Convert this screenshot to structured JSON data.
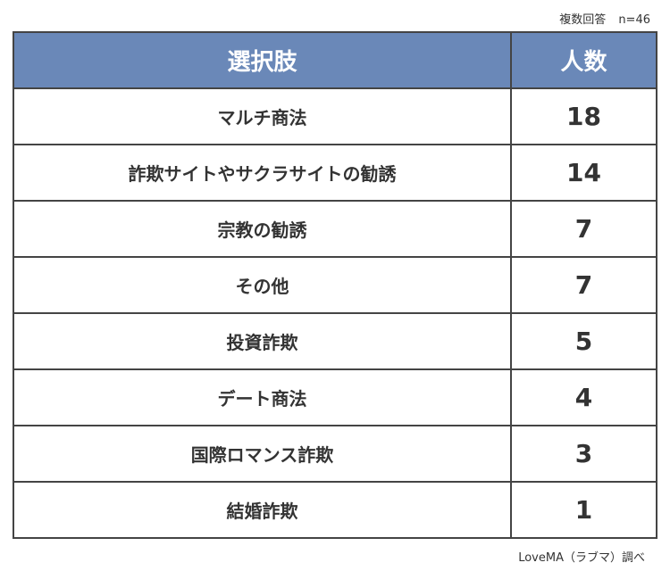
{
  "note": {
    "label": "複数回答",
    "n": "n=46"
  },
  "chart_data": {
    "type": "table",
    "columns": [
      "選択肢",
      "人数"
    ],
    "rows": [
      {
        "label": "マルチ商法",
        "value": "18"
      },
      {
        "label": "詐欺サイトやサクラサイトの勧誘",
        "value": "14"
      },
      {
        "label": "宗教の勧誘",
        "value": "7"
      },
      {
        "label": "その他",
        "value": "7"
      },
      {
        "label": "投資詐欺",
        "value": "5"
      },
      {
        "label": "デート商法",
        "value": "4"
      },
      {
        "label": "国際ロマンス詐欺",
        "value": "3"
      },
      {
        "label": "結婚詐欺",
        "value": "1"
      }
    ]
  },
  "source": "LoveMA（ラブマ）調べ",
  "colors": {
    "header": "#6a88b8"
  }
}
